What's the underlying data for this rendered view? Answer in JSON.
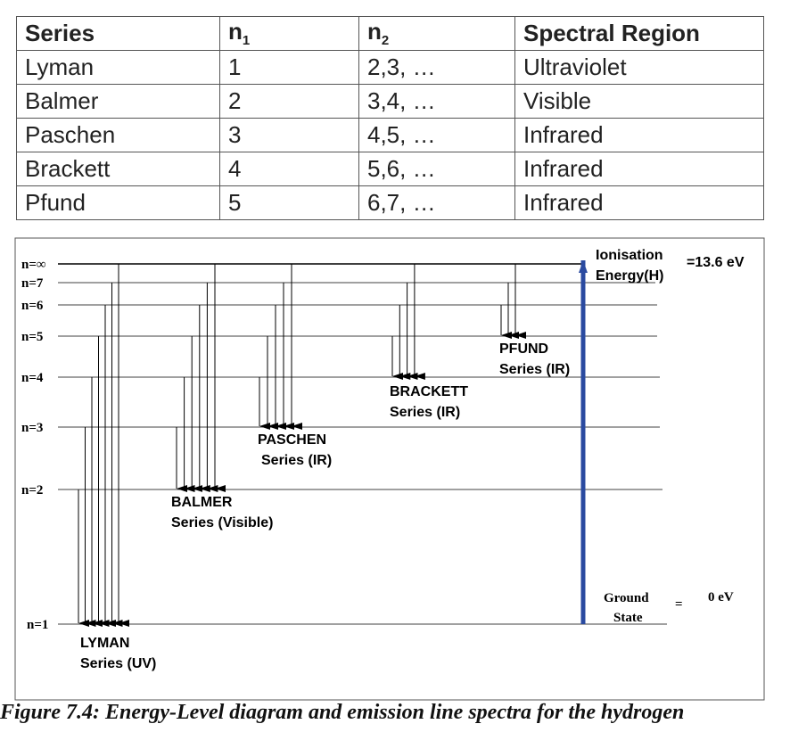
{
  "table": {
    "header": [
      "Series",
      {
        "main": "n",
        "sub": "1"
      },
      {
        "main": "n",
        "sub": "2"
      },
      "Spectral Region"
    ],
    "rows": [
      [
        "Lyman",
        "1",
        "2,3, …",
        "Ultraviolet"
      ],
      [
        "Balmer",
        "2",
        "3,4, …",
        "Visible"
      ],
      [
        "Paschen",
        "3",
        "4,5, …",
        "Infrared"
      ],
      [
        "Brackett",
        "4",
        "5,6, …",
        "Infrared"
      ],
      [
        "Pfund",
        "5",
        "6,7, …",
        "Infrared"
      ]
    ]
  },
  "diagram": {
    "levels": [
      "n=∞",
      "n=7",
      "n=6",
      "n=5",
      "n=4",
      "n=3",
      "n=2",
      "n=1"
    ],
    "series": [
      {
        "name": "LYMAN",
        "region": "Series (UV)"
      },
      {
        "name": "BALMER",
        "region": "Series (Visible)"
      },
      {
        "name": "PASCHEN",
        "region": "Series (IR)"
      },
      {
        "name": "BRACKETT",
        "region": "Series (IR)"
      },
      {
        "name": "PFUND",
        "region": "Series (IR)"
      }
    ],
    "ionisation": {
      "label": [
        "Ionisation",
        "Energy(H)"
      ],
      "value": "=13.6 eV"
    },
    "ground": {
      "label": [
        "Ground",
        "State"
      ],
      "equals": "=",
      "value": "0 eV"
    }
  },
  "caption": "Figure 7.4: Energy-Level diagram and emission line spectra for the hydrogen"
}
